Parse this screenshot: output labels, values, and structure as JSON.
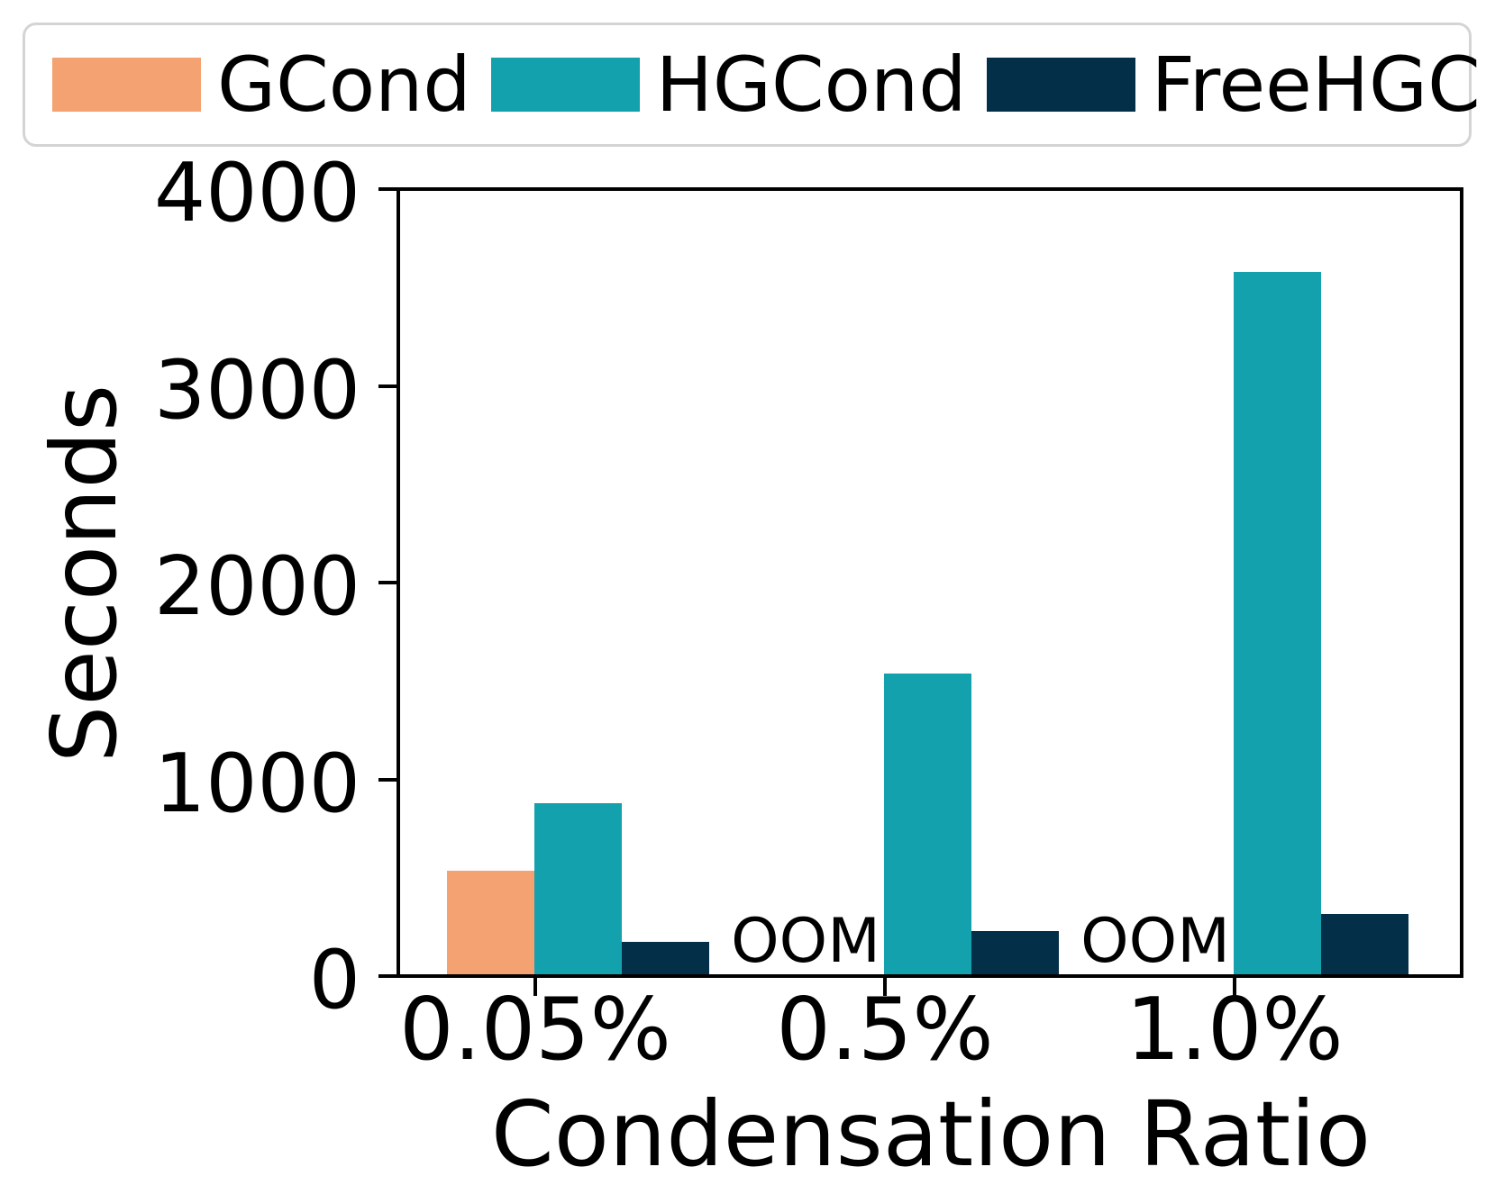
{
  "chart_data": {
    "type": "bar",
    "title": "",
    "xlabel": "Condensation Ratio",
    "ylabel": "Seconds",
    "categories": [
      "0.05%",
      "0.5%",
      "1.0%"
    ],
    "series": [
      {
        "name": "GCond",
        "color": "#f5a273",
        "values": [
          535,
          null,
          null
        ]
      },
      {
        "name": "HGCond",
        "color": "#12a1ad",
        "values": [
          880,
          1540,
          3580
        ]
      },
      {
        "name": "FreeHGC",
        "color": "#032f48",
        "values": [
          175,
          230,
          315
        ]
      }
    ],
    "missing_label": "OOM",
    "ylim": [
      0,
      4000
    ],
    "yticks": [
      0,
      1000,
      2000,
      3000,
      4000
    ],
    "ytick_labels": [
      "0",
      "1000",
      "2000",
      "3000",
      "4000"
    ],
    "legend_position": "top",
    "grid": false,
    "axis_color": "#000000",
    "background_color": "#ffffff"
  }
}
